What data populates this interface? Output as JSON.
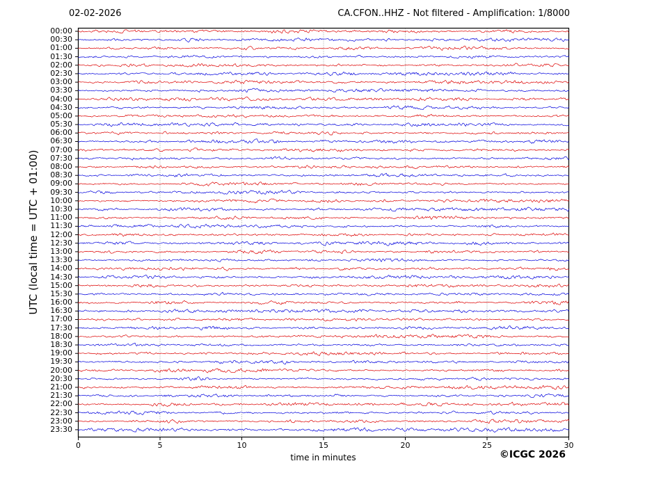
{
  "header": {
    "date_title": "02-02-2026",
    "station_title": "CA.CFON..HHZ - Not filtered - Amplification: 1/8000"
  },
  "footer": {
    "copyright": "©ICGC 2026"
  },
  "chart_data": {
    "type": "line",
    "subtype": "helicorder-seismogram",
    "title_left": "02-02-2026",
    "title_right": "CA.CFON..HHZ - Not filtered - Amplification: 1/8000",
    "xlabel": "time in minutes",
    "ylabel": "UTC (local time = UTC + 01:00)",
    "xlim": [
      0,
      30
    ],
    "x_ticks": [
      0,
      5,
      10,
      15,
      20,
      25,
      30
    ],
    "grid": {
      "vertical_dotted_at_minutes": [
        5,
        10,
        15,
        20,
        25
      ],
      "horizontal": false
    },
    "legend": "none",
    "minutes_per_row": 30,
    "trace_colors": {
      "red": "#dd0000",
      "blue": "#0000dd"
    },
    "frame_color": "#000000",
    "grid_color": "#808080",
    "description": "48 half-hour seismogram traces of continuous low-amplitude background noise; no distinct seismic events visible; amplitude roughly constant (about ±2 px) across the whole day",
    "rows": [
      {
        "label": "00:00",
        "color": "red"
      },
      {
        "label": "00:30",
        "color": "blue"
      },
      {
        "label": "01:00",
        "color": "red"
      },
      {
        "label": "01:30",
        "color": "blue"
      },
      {
        "label": "02:00",
        "color": "red"
      },
      {
        "label": "02:30",
        "color": "blue"
      },
      {
        "label": "03:00",
        "color": "red"
      },
      {
        "label": "03:30",
        "color": "blue"
      },
      {
        "label": "04:00",
        "color": "red"
      },
      {
        "label": "04:30",
        "color": "blue"
      },
      {
        "label": "05:00",
        "color": "red"
      },
      {
        "label": "05:30",
        "color": "blue"
      },
      {
        "label": "06:00",
        "color": "red"
      },
      {
        "label": "06:30",
        "color": "blue"
      },
      {
        "label": "07:00",
        "color": "red"
      },
      {
        "label": "07:30",
        "color": "blue"
      },
      {
        "label": "08:00",
        "color": "red"
      },
      {
        "label": "08:30",
        "color": "blue"
      },
      {
        "label": "09:00",
        "color": "red"
      },
      {
        "label": "09:30",
        "color": "blue"
      },
      {
        "label": "10:00",
        "color": "red"
      },
      {
        "label": "10:30",
        "color": "blue"
      },
      {
        "label": "11:00",
        "color": "red"
      },
      {
        "label": "11:30",
        "color": "blue"
      },
      {
        "label": "12:00",
        "color": "red"
      },
      {
        "label": "12:30",
        "color": "blue"
      },
      {
        "label": "13:00",
        "color": "red"
      },
      {
        "label": "13:30",
        "color": "blue"
      },
      {
        "label": "14:00",
        "color": "red"
      },
      {
        "label": "14:30",
        "color": "blue"
      },
      {
        "label": "15:00",
        "color": "red"
      },
      {
        "label": "15:30",
        "color": "blue"
      },
      {
        "label": "16:00",
        "color": "red"
      },
      {
        "label": "16:30",
        "color": "blue"
      },
      {
        "label": "17:00",
        "color": "red"
      },
      {
        "label": "17:30",
        "color": "blue"
      },
      {
        "label": "18:00",
        "color": "red"
      },
      {
        "label": "18:30",
        "color": "blue"
      },
      {
        "label": "19:00",
        "color": "red"
      },
      {
        "label": "19:30",
        "color": "blue"
      },
      {
        "label": "20:00",
        "color": "red"
      },
      {
        "label": "20:30",
        "color": "blue"
      },
      {
        "label": "21:00",
        "color": "red"
      },
      {
        "label": "21:30",
        "color": "blue"
      },
      {
        "label": "22:00",
        "color": "red"
      },
      {
        "label": "22:30",
        "color": "blue"
      },
      {
        "label": "23:00",
        "color": "red"
      },
      {
        "label": "23:30",
        "color": "blue"
      }
    ]
  }
}
